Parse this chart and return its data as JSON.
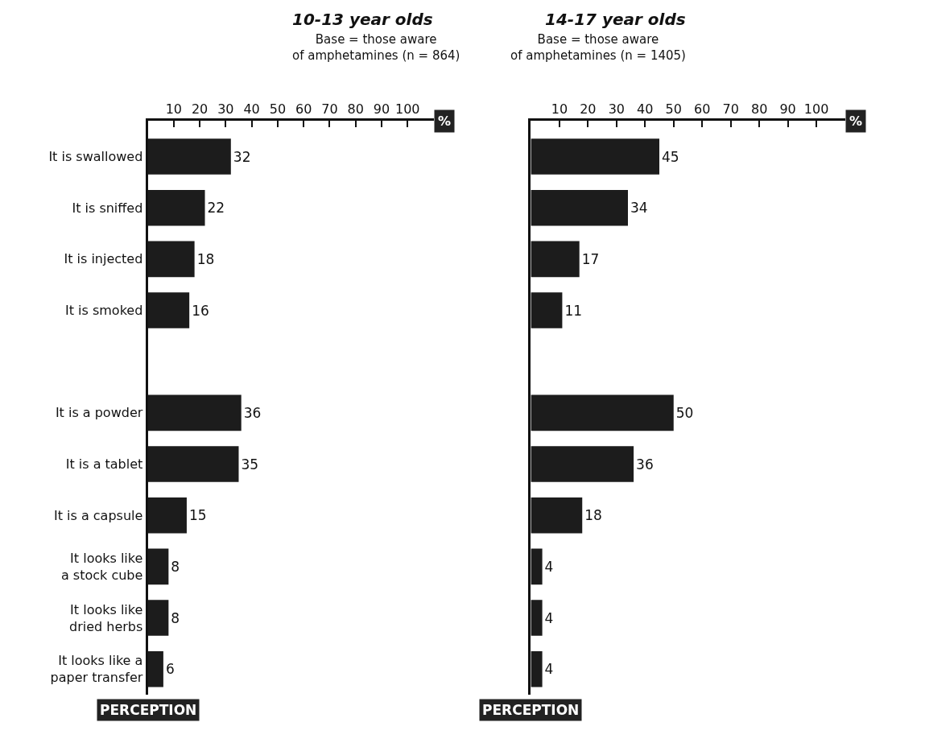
{
  "chart_data": [
    {
      "type": "bar",
      "orientation": "horizontal",
      "title": "10-13 year olds",
      "subtitle": "Base = those aware\nof amphetamines (n = 864)",
      "xlabel": "%",
      "categories": [
        "It is swallowed",
        "It is sniffed",
        "It is injected",
        "It is smoked",
        null,
        "It is a powder",
        "It is a tablet",
        "It is a capsule",
        "It looks like\na stock cube",
        "It looks like\ndried herbs",
        "It looks like a\npaper transfer"
      ],
      "values": [
        32,
        22,
        18,
        16,
        null,
        36,
        35,
        15,
        8,
        8,
        6
      ],
      "color": "#1c1c1c",
      "xlim": [
        0,
        110
      ],
      "xticks": [
        10,
        20,
        30,
        40,
        50,
        60,
        70,
        80,
        90,
        100
      ],
      "data_labels": true,
      "annotations": [
        "PERCEPTION"
      ]
    },
    {
      "type": "bar",
      "orientation": "horizontal",
      "title": "14-17 year olds",
      "subtitle": "Base = those aware\nof amphetamines (n = 1405)",
      "xlabel": "%",
      "categories": [
        null,
        null,
        null,
        null,
        null,
        null,
        null,
        null,
        null,
        null,
        null
      ],
      "values": [
        45,
        34,
        17,
        11,
        null,
        50,
        36,
        18,
        4,
        4,
        4
      ],
      "color": "#1c1c1c",
      "xlim": [
        0,
        110
      ],
      "xticks": [
        10,
        20,
        30,
        40,
        50,
        60,
        70,
        80,
        90,
        100
      ],
      "data_labels": true,
      "annotations": [
        "PERCEPTION"
      ]
    }
  ]
}
